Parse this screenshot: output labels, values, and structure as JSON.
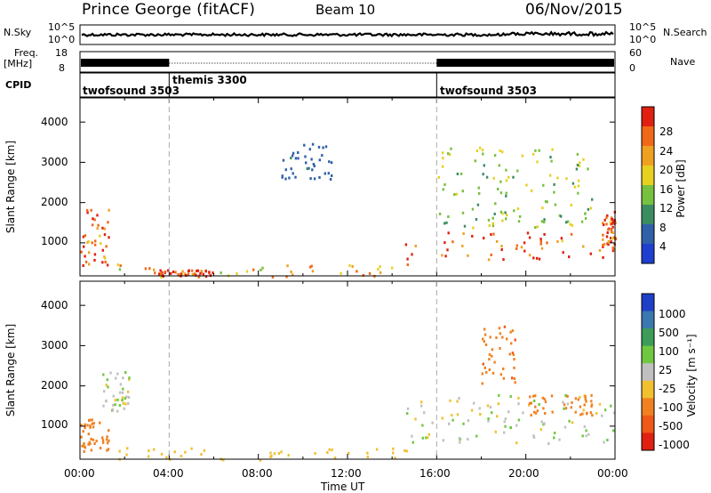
{
  "header": {
    "title": "Prince George (fitACF)",
    "beam": "Beam 10",
    "date": "06/Nov/2015"
  },
  "noise_panel": {
    "left_label": "N.Sky",
    "right_label": "N.Search",
    "left_ticks": [
      "10^5",
      "10^0"
    ],
    "right_ticks": [
      "10^5",
      "10^0"
    ]
  },
  "freq_panel": {
    "left_label_1": "Freq.",
    "left_label_2": "[MHz]",
    "right_label": "Nave",
    "left_ticks": [
      "18",
      "8"
    ],
    "right_ticks": [
      "60",
      "0"
    ]
  },
  "cpid_panel": {
    "label": "CPID",
    "segments": [
      {
        "name": "twofsound 3503",
        "start_hour": 0
      },
      {
        "name": "themis 3300",
        "start_hour": 4
      },
      {
        "name": "twofsound 3503",
        "start_hour": 16
      }
    ]
  },
  "power_panel": {
    "ylabel": "Slant Range [km]",
    "yticks": [
      "1000",
      "2000",
      "3000",
      "4000"
    ],
    "colorbar_label": "Power [dB]",
    "colorbar_ticks": [
      "4",
      "8",
      "12",
      "16",
      "20",
      "24",
      "28"
    ],
    "colors": [
      "#1f3fd0",
      "#3060a8",
      "#3c8c62",
      "#78c040",
      "#e8d020",
      "#f0a020",
      "#f06818",
      "#e02010"
    ]
  },
  "velocity_panel": {
    "ylabel": "Slant Range [km]",
    "yticks": [
      "1000",
      "2000",
      "3000",
      "4000"
    ],
    "colorbar_label": "Velocity [m s⁻¹]",
    "colorbar_ticks": [
      "1000",
      "500",
      "100",
      "25",
      "-25",
      "-100",
      "-500",
      "-1000"
    ],
    "colors": [
      "#1f3fc8",
      "#3a78b0",
      "#3c9c58",
      "#70c840",
      "#c0c0c0",
      "#f0c030",
      "#f08020",
      "#f05818",
      "#e02010"
    ]
  },
  "x_axis": {
    "label": "Time UT",
    "ticks": [
      "00:00",
      "04:00",
      "08:00",
      "12:00",
      "16:00",
      "20:00",
      "00:00"
    ]
  },
  "chart_data": [
    {
      "type": "heatmap",
      "title": "Power",
      "xlabel": "Time UT",
      "ylabel": "Slant Range [km]",
      "xlim": [
        0,
        24
      ],
      "ylim": [
        180,
        4600
      ],
      "zlim": [
        0,
        30
      ],
      "echo_regions": [
        {
          "t0": 0.0,
          "t1": 1.3,
          "r0": 400,
          "r1": 1900,
          "value": 26
        },
        {
          "t0": 1.5,
          "t1": 14.8,
          "r0": 180,
          "r1": 500,
          "value": 20
        },
        {
          "t0": 3.5,
          "t1": 6.0,
          "r0": 180,
          "r1": 350,
          "value": 28
        },
        {
          "t0": 9.0,
          "t1": 11.5,
          "r0": 2600,
          "r1": 3500,
          "value": 6
        },
        {
          "t0": 14.5,
          "t1": 24.0,
          "r0": 600,
          "r1": 1300,
          "value": 26
        },
        {
          "t0": 16.0,
          "t1": 23.0,
          "r0": 1400,
          "r1": 3400,
          "value": 14
        },
        {
          "t0": 23.4,
          "t1": 24.0,
          "r0": 800,
          "r1": 1800,
          "value": 26
        }
      ]
    },
    {
      "type": "heatmap",
      "title": "Velocity",
      "xlabel": "Time UT",
      "ylabel": "Slant Range [km]",
      "xlim": [
        0,
        24
      ],
      "ylim": [
        180,
        4600
      ],
      "zlim": [
        -1000,
        1000
      ],
      "echo_regions": [
        {
          "t0": 0.0,
          "t1": 1.3,
          "r0": 400,
          "r1": 1200,
          "value": -300
        },
        {
          "t0": 1.0,
          "t1": 2.2,
          "r0": 1400,
          "r1": 2400,
          "value": 0
        },
        {
          "t0": 1.5,
          "t1": 14.8,
          "r0": 180,
          "r1": 500,
          "value": -60
        },
        {
          "t0": 14.5,
          "t1": 24.0,
          "r0": 600,
          "r1": 1800,
          "value": 0
        },
        {
          "t0": 18.0,
          "t1": 19.5,
          "r0": 2000,
          "r1": 3500,
          "value": -400
        },
        {
          "t0": 20.0,
          "t1": 23.0,
          "r0": 1300,
          "r1": 1800,
          "value": -250
        }
      ]
    }
  ]
}
